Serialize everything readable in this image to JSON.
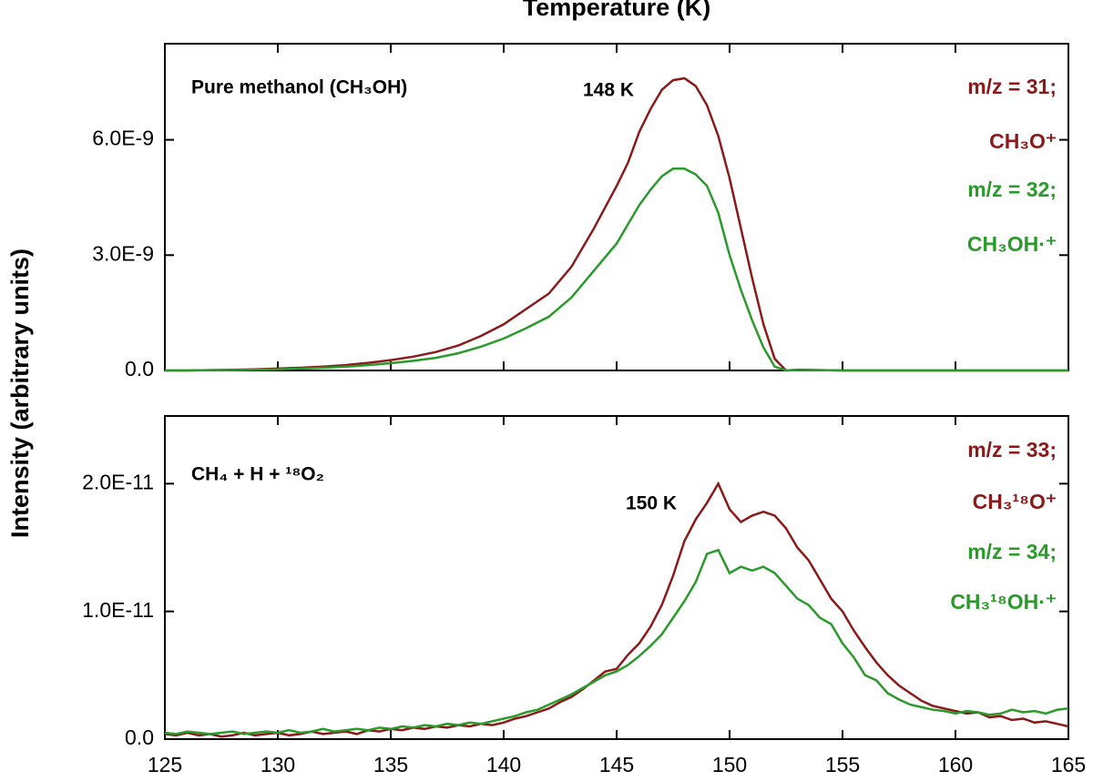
{
  "chart_data": [
    {
      "type": "line",
      "xlabel": "Temperature (K)",
      "ylabel": "Intensity (arbitrary units)",
      "annotations": [
        "Pure methanol (CH₃OH)",
        "148 K"
      ],
      "xlim": [
        125,
        165
      ],
      "xticks": [
        125,
        130,
        135,
        140,
        145,
        150,
        155,
        160,
        165
      ],
      "ylim": [
        0,
        8.5e-09
      ],
      "yticks": [
        {
          "value": 0,
          "label": "0.0"
        },
        {
          "value": 3e-09,
          "label": "3.0E-9"
        },
        {
          "value": 6e-09,
          "label": "6.0E-9"
        }
      ],
      "x": [
        125,
        126,
        127,
        128,
        129,
        130,
        131,
        132,
        133,
        134,
        135,
        136,
        137,
        138,
        139,
        140,
        141,
        142,
        143,
        144,
        145,
        145.5,
        146,
        146.5,
        147,
        147.5,
        148,
        148.5,
        149,
        149.5,
        150,
        150.5,
        151,
        151.5,
        152,
        152.5,
        153,
        154,
        155,
        156,
        157,
        158,
        159,
        160,
        161,
        162,
        163,
        164,
        165
      ],
      "series": [
        {
          "name": "m/z = 31;",
          "ion": "CH₃O⁺",
          "color": "#8b1a1a",
          "values": [
            0,
            0,
            1e-11,
            2e-11,
            3e-11,
            5e-11,
            7e-11,
            1e-10,
            1.4e-10,
            2e-10,
            2.7e-10,
            3.6e-10,
            4.8e-10,
            6.5e-10,
            9e-10,
            1.2e-09,
            1.6e-09,
            2e-09,
            2.7e-09,
            3.7e-09,
            4.8e-09,
            5.4e-09,
            6.2e-09,
            6.8e-09,
            7.3e-09,
            7.55e-09,
            7.6e-09,
            7.4e-09,
            6.9e-09,
            6.1e-09,
            5e-09,
            3.7e-09,
            2.4e-09,
            1.2e-09,
            3e-10,
            0,
            2e-11,
            1e-11,
            0,
            0,
            0,
            0,
            0,
            0,
            0,
            0,
            0,
            0,
            0
          ]
        },
        {
          "name": "m/z = 32;",
          "ion": "CH₃OH·⁺",
          "color": "#2a9a2a",
          "values": [
            0,
            0,
            1e-11,
            1e-11,
            2e-11,
            3e-11,
            5e-11,
            7e-11,
            1e-10,
            1.4e-10,
            1.9e-10,
            2.5e-10,
            3.3e-10,
            4.5e-10,
            6.2e-10,
            8.3e-10,
            1.1e-09,
            1.4e-09,
            1.9e-09,
            2.6e-09,
            3.3e-09,
            3.8e-09,
            4.3e-09,
            4.7e-09,
            5.05e-09,
            5.25e-09,
            5.25e-09,
            5.1e-09,
            4.8e-09,
            4.1e-09,
            3e-09,
            2.1e-09,
            1.3e-09,
            6e-10,
            1e-10,
            0,
            1e-11,
            1e-11,
            0,
            0,
            0,
            0,
            0,
            0,
            0,
            0,
            0,
            0,
            0
          ]
        }
      ]
    },
    {
      "type": "line",
      "annotations": [
        "CH₄ + H + ¹⁸O₂",
        "150 K"
      ],
      "xlim": [
        125,
        165
      ],
      "xticks": [
        125,
        130,
        135,
        140,
        145,
        150,
        155,
        160,
        165
      ],
      "ylim": [
        0,
        2.53e-11
      ],
      "yticks": [
        {
          "value": 0,
          "label": "0.0"
        },
        {
          "value": 1e-11,
          "label": "1.0E-11"
        },
        {
          "value": 2e-11,
          "label": "2.0E-11"
        }
      ],
      "x": [
        125,
        125.5,
        126,
        126.5,
        127,
        127.5,
        128,
        128.5,
        129,
        129.5,
        130,
        130.5,
        131,
        131.5,
        132,
        132.5,
        133,
        133.5,
        134,
        134.5,
        135,
        135.5,
        136,
        136.5,
        137,
        137.5,
        138,
        138.5,
        139,
        139.5,
        140,
        140.5,
        141,
        141.5,
        142,
        142.5,
        143,
        143.5,
        144,
        144.5,
        145,
        145.5,
        146,
        146.5,
        147,
        147.5,
        148,
        148.5,
        149,
        149.5,
        150,
        150.5,
        151,
        151.5,
        152,
        152.5,
        153,
        153.5,
        154,
        154.5,
        155,
        155.5,
        156,
        156.5,
        157,
        157.5,
        158,
        158.5,
        159,
        159.5,
        160,
        160.5,
        161,
        161.5,
        162,
        162.5,
        163,
        163.5,
        164,
        164.5,
        165
      ],
      "series": [
        {
          "name": "m/z = 33;",
          "ion": "CH₃¹⁸O⁺",
          "color": "#8b1a1a",
          "values": [
            4e-13,
            3e-13,
            5e-13,
            3e-13,
            4e-13,
            2e-13,
            3e-13,
            5e-13,
            3e-13,
            4e-13,
            5e-13,
            3e-13,
            4e-13,
            6e-13,
            4e-13,
            5e-13,
            6e-13,
            4e-13,
            7e-13,
            6e-13,
            8e-13,
            7e-13,
            9e-13,
            8e-13,
            1e-12,
            9e-13,
            1.1e-12,
            1e-12,
            1.2e-12,
            1.1e-12,
            1.3e-12,
            1.6e-12,
            1.8e-12,
            2.1e-12,
            2.4e-12,
            2.9e-12,
            3.3e-12,
            3.9e-12,
            4.6e-12,
            5.3e-12,
            5.5e-12,
            6.6e-12,
            7.5e-12,
            8.8e-12,
            1.05e-11,
            1.28e-11,
            1.55e-11,
            1.72e-11,
            1.85e-11,
            2e-11,
            1.8e-11,
            1.7e-11,
            1.75e-11,
            1.78e-11,
            1.75e-11,
            1.65e-11,
            1.5e-11,
            1.4e-11,
            1.25e-11,
            1.1e-11,
            1e-11,
            8.5e-12,
            7.2e-12,
            6e-12,
            5e-12,
            4.2e-12,
            3.6e-12,
            3e-12,
            2.6e-12,
            2.4e-12,
            2.2e-12,
            2e-12,
            2.1e-12,
            1.7e-12,
            1.8e-12,
            1.5e-12,
            1.6e-12,
            1.3e-12,
            1.4e-12,
            1.2e-12,
            1e-12
          ]
        },
        {
          "name": "m/z = 34;",
          "ion": "CH₃¹⁸OH·⁺",
          "color": "#2a9a2a",
          "values": [
            5e-13,
            4e-13,
            6e-13,
            5e-13,
            4e-13,
            5e-13,
            6e-13,
            4e-13,
            5e-13,
            6e-13,
            5e-13,
            7e-13,
            5e-13,
            6e-13,
            8e-13,
            6e-13,
            7e-13,
            8e-13,
            7e-13,
            9e-13,
            8e-13,
            1e-12,
            9e-13,
            1.1e-12,
            1e-12,
            1.2e-12,
            1.1e-12,
            1.3e-12,
            1.2e-12,
            1.4e-12,
            1.6e-12,
            1.8e-12,
            2.1e-12,
            2.3e-12,
            2.7e-12,
            3.1e-12,
            3.5e-12,
            4e-12,
            4.5e-12,
            5e-12,
            5.3e-12,
            5.8e-12,
            6.5e-12,
            7.3e-12,
            8.2e-12,
            9.5e-12,
            1.08e-11,
            1.23e-11,
            1.45e-11,
            1.48e-11,
            1.3e-11,
            1.35e-11,
            1.32e-11,
            1.35e-11,
            1.3e-11,
            1.2e-11,
            1.1e-11,
            1.05e-11,
            9.5e-12,
            9e-12,
            7.5e-12,
            6.4e-12,
            5e-12,
            4.6e-12,
            3.6e-12,
            3.1e-12,
            2.7e-12,
            2.5e-12,
            2.3e-12,
            2.2e-12,
            2e-12,
            2.2e-12,
            2.1e-12,
            1.9e-12,
            2e-12,
            2.3e-12,
            2.1e-12,
            2.2e-12,
            2e-12,
            2.3e-12,
            2.4e-12
          ]
        }
      ]
    }
  ]
}
